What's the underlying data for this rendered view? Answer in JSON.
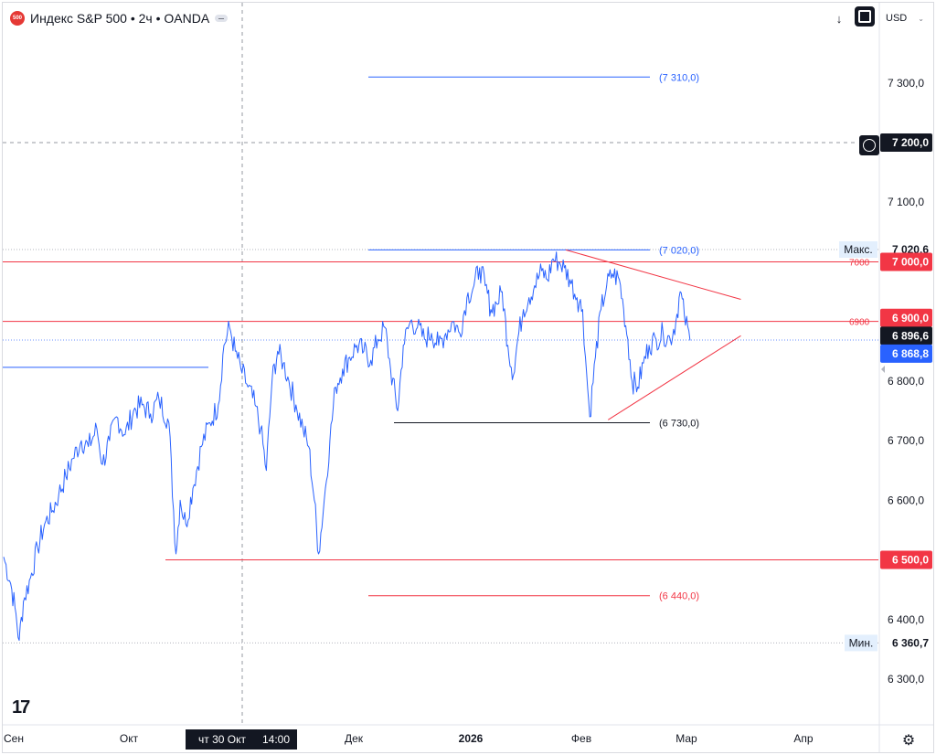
{
  "header": {
    "logo_text": "500",
    "title": "Индекс S&P 500 • 2ч • OANDA",
    "currency": "USD",
    "down_arrow": "↓",
    "chevron": "⌄"
  },
  "colors": {
    "price_line": "#2962ff",
    "level_red": "#f23645",
    "level_blue": "#2962ff",
    "support_black": "#131722",
    "label_dark": "#131722"
  },
  "price_labels": {
    "max_label": "Макс.",
    "max_value": "7 020,6",
    "min_label": "Мин.",
    "min_value": "6 360,7",
    "line_7200": "7 200,0",
    "line_7000": "7 000,0",
    "line_6900": "6 900,0",
    "last_close": "6 896,6",
    "current": "6 868,8",
    "line_6500": "6 500,0"
  },
  "level_annotations": {
    "blue_top": "(7 310,0)",
    "blue_mid": "(7 020,0)",
    "black_support": "(6 730,0)",
    "red_bottom": "(6 440,0)",
    "red_7000": "7000",
    "red_6900": "6900"
  },
  "crosshair": {
    "date_label": "чт 30 Окт",
    "time_label": "14:00"
  },
  "chart_data": {
    "type": "line",
    "title": "Индекс S&P 500 • 2ч • OANDA",
    "xlabel": "",
    "ylabel": "",
    "x_ticks": [
      "Сен",
      "Окт",
      "Дек",
      "2026",
      "Фев",
      "Мар",
      "Апр"
    ],
    "y_ticks": [
      "6 300,0",
      "6 400,0",
      "6 600,0",
      "6 700,0",
      "6 800,0",
      "7 100,0",
      "7 300,0"
    ],
    "ylim": [
      6220,
      7430
    ],
    "grid": false,
    "series": [
      {
        "values": [
          [
            0,
            6505
          ],
          [
            5,
            6460
          ],
          [
            8,
            6420
          ],
          [
            11,
            6365
          ],
          [
            14,
            6430
          ],
          [
            19,
            6470
          ],
          [
            24,
            6520
          ],
          [
            29,
            6560
          ],
          [
            34,
            6580
          ],
          [
            39,
            6610
          ],
          [
            44,
            6640
          ],
          [
            49,
            6670
          ],
          [
            55,
            6700
          ],
          [
            60,
            6690
          ],
          [
            66,
            6720
          ],
          [
            70,
            6660
          ],
          [
            75,
            6700
          ],
          [
            80,
            6740
          ],
          [
            86,
            6710
          ],
          [
            92,
            6750
          ],
          [
            98,
            6760
          ],
          [
            104,
            6745
          ],
          [
            110,
            6770
          ],
          [
            117,
            6730
          ],
          [
            122,
            6510
          ],
          [
            125,
            6600
          ],
          [
            129,
            6560
          ],
          [
            134,
            6620
          ],
          [
            140,
            6690
          ],
          [
            146,
            6730
          ],
          [
            152,
            6760
          ],
          [
            156,
            6860
          ],
          [
            160,
            6890
          ],
          [
            164,
            6850
          ],
          [
            168,
            6820
          ],
          [
            173,
            6790
          ],
          [
            178,
            6760
          ],
          [
            182,
            6720
          ],
          [
            186,
            6650
          ],
          [
            190,
            6800
          ],
          [
            194,
            6850
          ],
          [
            198,
            6830
          ],
          [
            202,
            6800
          ],
          [
            207,
            6760
          ],
          [
            212,
            6720
          ],
          [
            216,
            6690
          ],
          [
            220,
            6600
          ],
          [
            223,
            6510
          ],
          [
            227,
            6600
          ],
          [
            231,
            6700
          ],
          [
            235,
            6790
          ],
          [
            240,
            6820
          ],
          [
            245,
            6840
          ],
          [
            250,
            6860
          ],
          [
            255,
            6850
          ],
          [
            260,
            6835
          ],
          [
            265,
            6870
          ],
          [
            270,
            6890
          ],
          [
            274,
            6820
          ],
          [
            279,
            6750
          ],
          [
            283,
            6860
          ],
          [
            288,
            6900
          ],
          [
            293,
            6890
          ],
          [
            298,
            6870
          ],
          [
            303,
            6880
          ],
          [
            308,
            6860
          ],
          [
            313,
            6880
          ],
          [
            318,
            6900
          ],
          [
            323,
            6880
          ],
          [
            328,
            6940
          ],
          [
            333,
            6960
          ],
          [
            337,
            6990
          ],
          [
            341,
            6960
          ],
          [
            345,
            6920
          ],
          [
            349,
            6930
          ],
          [
            353,
            6950
          ],
          [
            357,
            6860
          ],
          [
            361,
            6810
          ],
          [
            364,
            6870
          ],
          [
            368,
            6920
          ],
          [
            372,
            6940
          ],
          [
            376,
            6960
          ],
          [
            381,
            6985
          ],
          [
            385,
            6970
          ],
          [
            389,
            7005
          ],
          [
            393,
            7000
          ],
          [
            397,
            6990
          ],
          [
            401,
            6970
          ],
          [
            406,
            6940
          ],
          [
            410,
            6920
          ],
          [
            412,
            6840
          ],
          [
            415,
            6740
          ],
          [
            419,
            6840
          ],
          [
            423,
            6920
          ],
          [
            427,
            6960
          ],
          [
            431,
            6980
          ],
          [
            436,
            6970
          ],
          [
            439,
            6920
          ],
          [
            442,
            6870
          ],
          [
            445,
            6800
          ],
          [
            449,
            6790
          ],
          [
            453,
            6830
          ],
          [
            457,
            6860
          ],
          [
            462,
            6870
          ],
          [
            467,
            6880
          ],
          [
            472,
            6870
          ],
          [
            476,
            6900
          ],
          [
            479,
            6950
          ],
          [
            482,
            6910
          ],
          [
            486,
            6868
          ]
        ]
      }
    ],
    "levels": [
      {
        "value": 7310,
        "color": "#2962ff"
      },
      {
        "value": 7200,
        "color": "#9598a1",
        "style": "dashed"
      },
      {
        "value": 7020,
        "color": "#2962ff"
      },
      {
        "value": 7000,
        "color": "#f23645"
      },
      {
        "value": 6900,
        "color": "#f23645"
      },
      {
        "value": 6823,
        "color": "#2962ff"
      },
      {
        "value": 6730,
        "color": "#131722"
      },
      {
        "value": 6500,
        "color": "#f23645"
      },
      {
        "value": 6440,
        "color": "#f23645"
      }
    ],
    "triangle": {
      "upper_from": [
        398,
        7020
      ],
      "upper_to": [
        522,
        6937
      ],
      "lower_from": [
        428,
        6735
      ],
      "lower_to": [
        522,
        6876
      ]
    }
  }
}
